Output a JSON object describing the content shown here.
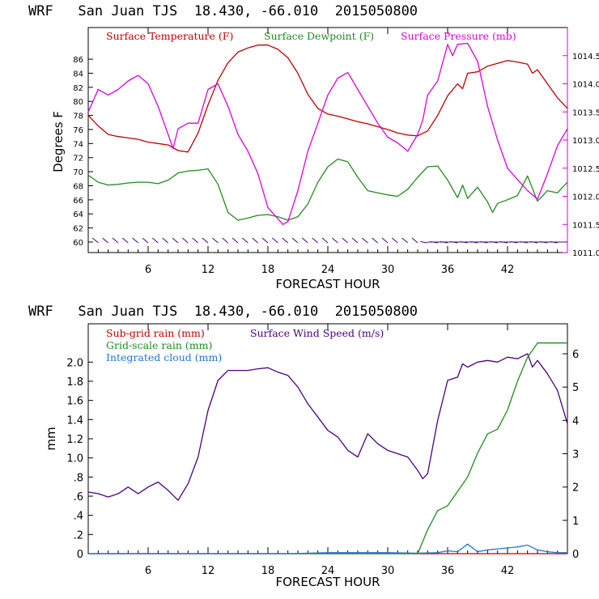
{
  "chart_data": [
    {
      "type": "line",
      "title": "WRF   San Juan TJS  18.430, -66.010  2015050800",
      "xlabel": "FORECAST HOUR",
      "ylabel": "Degrees F",
      "xlim": [
        0,
        48
      ],
      "xticks": [
        6,
        12,
        18,
        24,
        30,
        36,
        42
      ],
      "ylim": [
        58.5,
        90.5
      ],
      "yticks": [
        "60",
        "62",
        "64",
        "66",
        "68",
        "70",
        "72",
        "74",
        "76",
        "78",
        "80",
        "82",
        "84",
        "86"
      ],
      "y2lim": [
        1011.0,
        1015.0
      ],
      "y2ticks": [
        "1011.0",
        "1011.5",
        "1012.0",
        "1012.5",
        "1013.0",
        "1013.5",
        "1014.0",
        "1014.5"
      ],
      "legend_position": "top",
      "series": [
        {
          "name": "Surface Temperature (F)",
          "color": "#c00000",
          "axis": "left",
          "x": [
            0,
            1,
            2,
            3,
            4,
            5,
            6,
            7,
            8,
            9,
            10,
            11,
            12,
            13,
            14,
            15,
            16,
            17,
            18,
            19,
            20,
            21,
            22,
            23,
            24,
            25,
            26,
            27,
            28,
            29,
            30,
            31,
            32,
            33,
            34,
            35,
            36,
            37,
            37.5,
            38,
            39,
            40,
            41,
            42,
            43,
            44,
            44.5,
            45,
            46,
            47,
            48
          ],
          "y": [
            78,
            76.5,
            75.3,
            75,
            74.8,
            74.6,
            74.2,
            74,
            73.8,
            73,
            72.8,
            75.5,
            79.5,
            83,
            85.5,
            87,
            87.6,
            88,
            88,
            87.4,
            86.2,
            84,
            81,
            79,
            78.2,
            77.9,
            77.5,
            77.1,
            76.8,
            76.4,
            76,
            75.5,
            75.2,
            75.1,
            75.8,
            78,
            80.8,
            82.5,
            81.8,
            84,
            84.2,
            85,
            85.4,
            85.8,
            85.6,
            85.3,
            84,
            84.5,
            82.5,
            80.5,
            79
          ]
        },
        {
          "name": "Surface Dewpoint (F)",
          "color": "#228b22",
          "axis": "left",
          "x": [
            0,
            1,
            2,
            3,
            4,
            5,
            6,
            7,
            8,
            9,
            10,
            11,
            12,
            13,
            14,
            15,
            16,
            17,
            18,
            19,
            20,
            21,
            22,
            23,
            24,
            25,
            26,
            27,
            28,
            29,
            30,
            31,
            32,
            33,
            34,
            35,
            36,
            37,
            37.5,
            38,
            39,
            40,
            40.5,
            41,
            42,
            43,
            44,
            45,
            46,
            47,
            48
          ],
          "y": [
            69.5,
            68.5,
            68.1,
            68.2,
            68.4,
            68.5,
            68.5,
            68.3,
            68.8,
            69.8,
            70.1,
            70.2,
            70.4,
            68.2,
            64.2,
            63.1,
            63.4,
            63.8,
            63.9,
            63.6,
            63.1,
            63.6,
            65.4,
            68.5,
            70.7,
            71.8,
            71.4,
            69.2,
            67.3,
            67,
            66.7,
            66.5,
            67.5,
            69.2,
            70.7,
            70.8,
            68.8,
            66.3,
            68.1,
            66.2,
            67.8,
            65.7,
            64.2,
            65.5,
            66,
            66.6,
            69.4,
            65.8,
            67.3,
            67,
            68.5
          ]
        },
        {
          "name": "Surface Pressure (mb)",
          "color": "#dd00dd",
          "axis": "right",
          "x": [
            0,
            1,
            2,
            3,
            4,
            5,
            6,
            7,
            8,
            8.5,
            9,
            10,
            11,
            12,
            13,
            14,
            15,
            16,
            17,
            18,
            19,
            19.5,
            20,
            21,
            22,
            23,
            24,
            25,
            26,
            27,
            28,
            29,
            30,
            31,
            32,
            33,
            33.5,
            34,
            35,
            36,
            36.5,
            37,
            38,
            39,
            39.5,
            40,
            41,
            42,
            43,
            44,
            45,
            46,
            47,
            48
          ],
          "y": [
            1013.5,
            1013.9,
            1013.8,
            1013.9,
            1014.05,
            1014.15,
            1014.0,
            1013.6,
            1013.1,
            1012.85,
            1013.2,
            1013.3,
            1013.3,
            1013.9,
            1014.0,
            1013.6,
            1013.1,
            1012.8,
            1012.4,
            1011.8,
            1011.6,
            1011.5,
            1011.55,
            1012.1,
            1012.8,
            1013.3,
            1013.8,
            1014.1,
            1014.2,
            1013.9,
            1013.6,
            1013.3,
            1013.05,
            1012.95,
            1012.8,
            1013.1,
            1013.35,
            1013.8,
            1014.05,
            1014.7,
            1014.5,
            1014.7,
            1014.72,
            1014.4,
            1014.0,
            1013.6,
            1013.0,
            1012.5,
            1012.3,
            1012.1,
            1011.95,
            1012.4,
            1012.9,
            1013.2
          ]
        }
      ],
      "wind_barbs": "row of wind barbs along the bottom of the plot"
    },
    {
      "type": "line",
      "title": "WRF   San Juan TJS  18.430, -66.010  2015050800",
      "xlabel": "FORECAST HOUR",
      "ylabel": "mm",
      "xlim": [
        0,
        48
      ],
      "xticks": [
        6,
        12,
        18,
        24,
        30,
        36,
        42
      ],
      "ylim": [
        0,
        2.4
      ],
      "yticks": [
        {
          "v": 0,
          "label": "0"
        },
        {
          "v": 0.2,
          "label": ".2"
        },
        {
          "v": 0.4,
          "label": ".4"
        },
        {
          "v": 0.6,
          "label": ".6"
        },
        {
          "v": 0.8,
          "label": ".8"
        },
        {
          "v": 1.0,
          "label": "1.0"
        },
        {
          "v": 1.2,
          "label": "1.2"
        },
        {
          "v": 1.4,
          "label": "1.4"
        },
        {
          "v": 1.6,
          "label": "1.6"
        },
        {
          "v": 1.8,
          "label": "1.8"
        },
        {
          "v": 2.0,
          "label": "2.0"
        }
      ],
      "y2lim": [
        0,
        6.9
      ],
      "y2ticks": [
        "0",
        "1",
        "2",
        "3",
        "4",
        "5",
        "6"
      ],
      "legend_position": "top",
      "series": [
        {
          "name": "Sub-grid rain (mm)",
          "color": "#c00000",
          "axis": "left",
          "x": [
            0,
            48
          ],
          "y": [
            0,
            0
          ]
        },
        {
          "name": "Surface Wind Speed (m/s)",
          "color": "#4b0082",
          "axis": "right",
          "x": [
            0,
            1,
            2,
            3,
            4,
            5,
            6,
            7,
            8,
            9,
            10,
            11,
            12,
            13,
            14,
            15,
            16,
            17,
            18,
            19,
            20,
            21,
            22,
            23,
            24,
            25,
            26,
            27,
            28,
            29,
            30,
            31,
            32,
            33,
            33.5,
            34,
            35,
            36,
            37,
            37.5,
            38,
            39,
            40,
            41,
            42,
            43,
            44,
            44.5,
            45,
            46,
            47,
            48
          ],
          "y": [
            1.85,
            1.8,
            1.7,
            1.8,
            2.0,
            1.8,
            2.0,
            2.15,
            1.9,
            1.6,
            2.1,
            2.9,
            4.3,
            5.2,
            5.5,
            5.5,
            5.5,
            5.55,
            5.58,
            5.45,
            5.35,
            5.0,
            4.5,
            4.1,
            3.7,
            3.5,
            3.1,
            2.9,
            3.6,
            3.3,
            3.1,
            3.0,
            2.9,
            2.5,
            2.25,
            2.4,
            4.0,
            5.2,
            5.3,
            5.7,
            5.6,
            5.75,
            5.8,
            5.75,
            5.9,
            5.85,
            6.0,
            5.6,
            5.8,
            5.4,
            4.9,
            3.9
          ]
        },
        {
          "name": "Grid-scale rain (mm)",
          "color": "#228b22",
          "axis": "left",
          "x": [
            0,
            33,
            34,
            35,
            36,
            37,
            38,
            39,
            40,
            41,
            42,
            43,
            44,
            45,
            46,
            47,
            48
          ],
          "y": [
            0,
            0,
            0.25,
            0.45,
            0.5,
            0.65,
            0.8,
            1.05,
            1.25,
            1.3,
            1.5,
            1.8,
            2.05,
            2.2,
            2.2,
            2.2,
            2.2
          ]
        },
        {
          "name": "Integrated cloud (mm)",
          "color": "#1f77d4",
          "axis": "left",
          "x": [
            0,
            20,
            24,
            30,
            33,
            35,
            36,
            37,
            38,
            39,
            40,
            41,
            42,
            43,
            44,
            45,
            46,
            47,
            48
          ],
          "y": [
            0,
            0,
            0.01,
            0.01,
            0.005,
            0.01,
            0.03,
            0.02,
            0.1,
            0.02,
            0.04,
            0.05,
            0.06,
            0.07,
            0.09,
            0.04,
            0.02,
            0.01,
            0.01
          ]
        }
      ]
    }
  ]
}
